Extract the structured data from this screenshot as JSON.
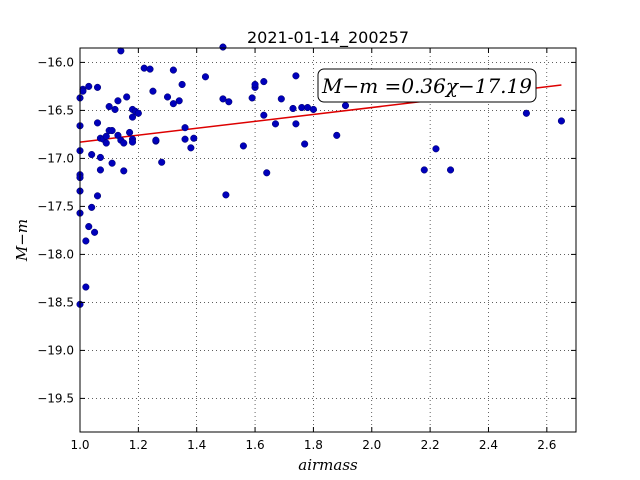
{
  "chart_data": {
    "type": "scatter",
    "title": "2021-01-14_200257",
    "xlabel": "airmass",
    "ylabel": "M−m",
    "xlim": [
      1.0,
      2.7
    ],
    "ylim": [
      -19.85,
      -15.85
    ],
    "y_inverted": false,
    "grid": true,
    "x_ticks": [
      1.0,
      1.2,
      1.4,
      1.6,
      1.8,
      2.0,
      2.2,
      2.4,
      2.6
    ],
    "x_tick_labels": [
      "1.0",
      "1.2",
      "1.4",
      "1.6",
      "1.8",
      "2.0",
      "2.2",
      "2.4",
      "2.6"
    ],
    "y_ticks": [
      -16.0,
      -16.5,
      -17.0,
      -17.5,
      -18.0,
      -18.5,
      -19.0,
      -19.5
    ],
    "y_tick_labels": [
      "−16.0",
      "−16.5",
      "−17.0",
      "−17.5",
      "−18.0",
      "−18.5",
      "−19.0",
      "−19.5"
    ],
    "annotation": "M−m =0.36χ−17.19",
    "fit": {
      "slope": 0.36,
      "intercept": -17.19,
      "x_range": [
        1.0,
        2.65
      ],
      "color": "#dd0000"
    },
    "series": [
      {
        "color": "#0000bb",
        "points": [
          [
            1.0,
            -16.37
          ],
          [
            1.01,
            -16.28
          ],
          [
            1.01,
            -16.3
          ],
          [
            1.0,
            -16.66
          ],
          [
            1.0,
            -16.92
          ],
          [
            1.0,
            -17.17
          ],
          [
            1.0,
            -17.2
          ],
          [
            1.0,
            -17.34
          ],
          [
            1.0,
            -17.57
          ],
          [
            1.0,
            -18.52
          ],
          [
            1.02,
            -17.86
          ],
          [
            1.02,
            -18.34
          ],
          [
            1.03,
            -17.71
          ],
          [
            1.03,
            -16.25
          ],
          [
            1.04,
            -17.51
          ],
          [
            1.05,
            -17.77
          ],
          [
            1.04,
            -16.96
          ],
          [
            1.06,
            -16.26
          ],
          [
            1.06,
            -16.63
          ],
          [
            1.06,
            -17.39
          ],
          [
            1.07,
            -16.99
          ],
          [
            1.07,
            -17.12
          ],
          [
            1.07,
            -16.79
          ],
          [
            1.08,
            -16.8
          ],
          [
            1.09,
            -16.77
          ],
          [
            1.09,
            -16.84
          ],
          [
            1.1,
            -16.71
          ],
          [
            1.1,
            -16.46
          ],
          [
            1.11,
            -16.71
          ],
          [
            1.11,
            -17.05
          ],
          [
            1.12,
            -16.49
          ],
          [
            1.13,
            -16.4
          ],
          [
            1.13,
            -16.76
          ],
          [
            1.14,
            -15.88
          ],
          [
            1.14,
            -16.81
          ],
          [
            1.15,
            -17.13
          ],
          [
            1.15,
            -16.84
          ],
          [
            1.16,
            -16.36
          ],
          [
            1.17,
            -16.73
          ],
          [
            1.18,
            -16.49
          ],
          [
            1.18,
            -16.57
          ],
          [
            1.18,
            -16.8
          ],
          [
            1.18,
            -16.83
          ],
          [
            1.19,
            -16.51
          ],
          [
            1.2,
            -16.53
          ],
          [
            1.22,
            -16.06
          ],
          [
            1.24,
            -16.07
          ],
          [
            1.25,
            -16.3
          ],
          [
            1.26,
            -16.82
          ],
          [
            1.26,
            -16.81
          ],
          [
            1.28,
            -17.04
          ],
          [
            1.3,
            -16.36
          ],
          [
            1.32,
            -16.08
          ],
          [
            1.32,
            -16.43
          ],
          [
            1.34,
            -16.4
          ],
          [
            1.35,
            -16.23
          ],
          [
            1.36,
            -16.68
          ],
          [
            1.36,
            -16.8
          ],
          [
            1.38,
            -16.89
          ],
          [
            1.39,
            -16.79
          ],
          [
            1.43,
            -16.15
          ],
          [
            1.49,
            -15.84
          ],
          [
            1.49,
            -16.38
          ],
          [
            1.5,
            -17.38
          ],
          [
            1.51,
            -16.41
          ],
          [
            1.56,
            -16.87
          ],
          [
            1.59,
            -16.37
          ],
          [
            1.6,
            -16.26
          ],
          [
            1.6,
            -16.23
          ],
          [
            1.63,
            -16.2
          ],
          [
            1.63,
            -16.55
          ],
          [
            1.64,
            -17.15
          ],
          [
            1.67,
            -16.64
          ],
          [
            1.69,
            -16.38
          ],
          [
            1.73,
            -16.48
          ],
          [
            1.74,
            -16.14
          ],
          [
            1.74,
            -16.64
          ],
          [
            1.76,
            -16.47
          ],
          [
            1.77,
            -16.85
          ],
          [
            1.78,
            -16.47
          ],
          [
            1.8,
            -16.49
          ],
          [
            1.88,
            -16.76
          ],
          [
            1.91,
            -16.45
          ],
          [
            2.18,
            -17.12
          ],
          [
            2.22,
            -16.9
          ],
          [
            2.27,
            -17.12
          ],
          [
            2.53,
            -16.53
          ],
          [
            2.65,
            -16.61
          ]
        ]
      }
    ]
  }
}
